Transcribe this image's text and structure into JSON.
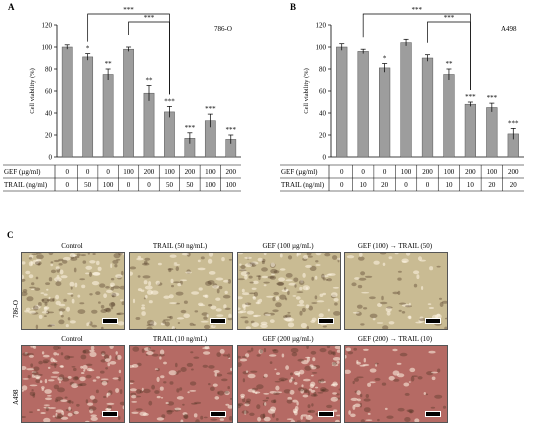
{
  "panels": {
    "A": "A",
    "B": "B",
    "C": "C"
  },
  "chart_data": [
    {
      "type": "bar",
      "panel": "A",
      "cell_line": "786-O",
      "ylabel": "Cell viability (%)",
      "ylim": [
        0,
        120
      ],
      "yticks": [
        0,
        20,
        40,
        60,
        80,
        100,
        120
      ],
      "row_labels": [
        "GEF (µg/ml)",
        "TRAIL (ng/ml)"
      ],
      "gef": [
        "0",
        "0",
        "0",
        "100",
        "200",
        "100",
        "200",
        "100",
        "200"
      ],
      "trail": [
        "0",
        "50",
        "100",
        "0",
        "0",
        "50",
        "50",
        "100",
        "100"
      ],
      "values": [
        100,
        91,
        75,
        98,
        58,
        41,
        17,
        33,
        16
      ],
      "errors": [
        2,
        3,
        5,
        2,
        7,
        5,
        5,
        6,
        4
      ],
      "significance": [
        "",
        "*",
        "**",
        "",
        "**",
        "***",
        "***",
        "***",
        "***"
      ],
      "brackets": [
        {
          "from": 1,
          "to": 5,
          "label": "***"
        },
        {
          "from": 3,
          "to": 5,
          "label": "***"
        }
      ]
    },
    {
      "type": "bar",
      "panel": "B",
      "cell_line": "A498",
      "ylabel": "Cell viability (%)",
      "ylim": [
        0,
        120
      ],
      "yticks": [
        0,
        20,
        40,
        60,
        80,
        100,
        120
      ],
      "row_labels": [
        "GEF (µg/ml)",
        "TRAIL (ng/ml)"
      ],
      "gef": [
        "0",
        "0",
        "0",
        "100",
        "200",
        "100",
        "200",
        "100",
        "200"
      ],
      "trail": [
        "0",
        "10",
        "20",
        "0",
        "0",
        "10",
        "10",
        "20",
        "20"
      ],
      "values": [
        100,
        96,
        81,
        104,
        90,
        75,
        48,
        45,
        21
      ],
      "errors": [
        3,
        2,
        4,
        3,
        3,
        5,
        2,
        4,
        5
      ],
      "significance": [
        "",
        "",
        "*",
        "",
        "",
        "**",
        "***",
        "***",
        "***"
      ],
      "brackets": [
        {
          "from": 1,
          "to": 6,
          "label": "***"
        },
        {
          "from": 4,
          "to": 6,
          "label": "***"
        }
      ]
    }
  ],
  "micrographs": {
    "rows": [
      {
        "label": "786-O",
        "bg": "#c9bb93",
        "cells": [
          "Control",
          "TRAIL (50 ng/mL)",
          "GEF (100 µg/mL)",
          "GEF (100) → TRAIL (50)"
        ]
      },
      {
        "label": "A498",
        "bg": "#b56a64",
        "cells": [
          "Control",
          "TRAIL (10 ng/mL)",
          "GEF (200 µg/mL)",
          "GEF (200) → TRAIL (10)"
        ]
      }
    ]
  }
}
